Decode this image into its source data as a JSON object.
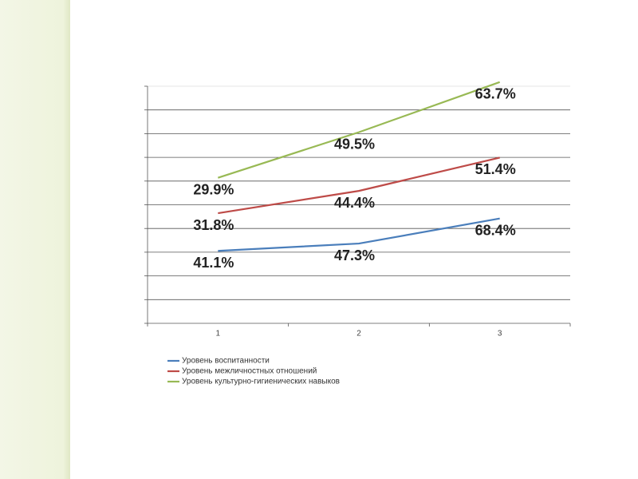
{
  "chart_data": {
    "type": "line",
    "stacked": true,
    "grid": true,
    "show_ytick_labels": false,
    "legend": "bottom",
    "categories": [
      "1",
      "2",
      "3"
    ],
    "ylim": [
      -20,
      180
    ],
    "yticks": [
      -20,
      0,
      20,
      40,
      60,
      80,
      100,
      120,
      140,
      160,
      180
    ],
    "series": [
      {
        "name": "Уровень воспитанности",
        "color": "#4a7ebb",
        "values": [
          41.1,
          47.3,
          68.4
        ],
        "value_labels": [
          "41.1%",
          "47.3%",
          "68.4%"
        ]
      },
      {
        "name": "Уровень межличностных отношений",
        "color": "#be4b48",
        "values": [
          31.8,
          44.4,
          51.4
        ],
        "value_labels": [
          "31.8%",
          "44.4%",
          "51.4%"
        ]
      },
      {
        "name": "Уровень культурно-гигиенических навыков",
        "color": "#98b954",
        "values": [
          29.9,
          49.5,
          63.7
        ],
        "value_labels": [
          "29.9%",
          "49.5%",
          "63.7%"
        ]
      }
    ]
  }
}
